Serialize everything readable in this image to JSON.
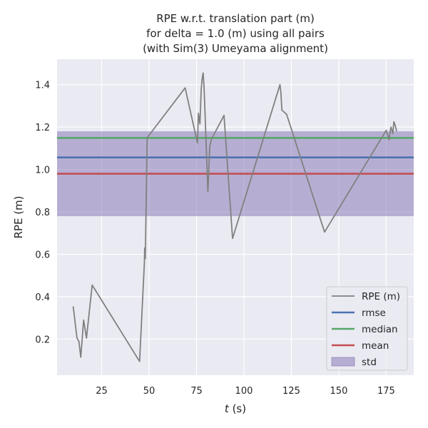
{
  "chart_data": {
    "type": "line",
    "title_lines": [
      "RPE w.r.t. translation part (m)",
      "for delta = 1.0 (m) using all pairs",
      "(with Sim(3) Umeyama alignment)"
    ],
    "xlabel_italic": "t",
    "xlabel_rest": " (s)",
    "ylabel": "RPE (m)",
    "xlim": [
      1.5,
      189.5
    ],
    "ylim": [
      0.03,
      1.52
    ],
    "xticks": [
      25,
      50,
      75,
      100,
      125,
      150,
      175
    ],
    "yticks": [
      0.2,
      0.4,
      0.6,
      0.8,
      1.0,
      1.2,
      1.4
    ],
    "xtick_labels": [
      "25",
      "50",
      "75",
      "100",
      "125",
      "150",
      "175"
    ],
    "ytick_labels": [
      "0.2",
      "0.4",
      "0.6",
      "0.8",
      "1.0",
      "1.2",
      "1.4"
    ],
    "grid": true,
    "legend_position": "lower-right",
    "series": [
      {
        "name": "RPE (m)",
        "color": "#808080",
        "x": [
          10,
          12,
          13,
          14,
          15.5,
          17,
          20,
          45,
          47.5,
          47.7,
          48,
          49,
          69,
          75.5,
          76,
          76.8,
          77.5,
          78,
          78.5,
          79,
          81,
          82,
          83,
          89.5,
          94,
          119,
          119.5,
          120,
          122.5,
          142.5,
          175,
          176.5,
          177,
          177.5,
          178,
          178.5,
          179,
          179.5,
          180.5
        ],
        "y": [
          0.355,
          0.205,
          0.19,
          0.115,
          0.29,
          0.205,
          0.455,
          0.095,
          0.555,
          0.63,
          0.58,
          1.15,
          1.385,
          1.125,
          1.265,
          1.215,
          1.38,
          1.43,
          1.455,
          1.385,
          0.895,
          1.11,
          1.145,
          1.255,
          0.675,
          1.4,
          1.36,
          1.28,
          1.26,
          0.705,
          1.185,
          1.14,
          1.175,
          1.2,
          1.185,
          1.17,
          1.225,
          1.215,
          1.18
        ]
      }
    ],
    "stats": {
      "rmse": 1.057,
      "median": 1.149,
      "mean": 0.98,
      "std": 0.2,
      "std_band": [
        0.78,
        1.18
      ]
    },
    "colors": {
      "rmse": "#4c72b0",
      "median": "#55a868",
      "mean": "#c44e52",
      "std": "#8172b2",
      "plot_bg": "#eaeaf2",
      "grid": "#ffffff"
    },
    "legend": [
      "RPE (m)",
      "rmse",
      "median",
      "mean",
      "std"
    ]
  }
}
